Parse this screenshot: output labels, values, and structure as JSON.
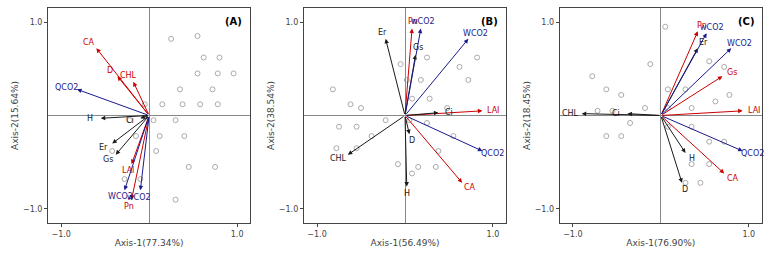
{
  "chart_data": [
    {
      "type": "biplot",
      "x_label": "Axis-1(77.34%)",
      "y_label": "Axis-2(15.64%)",
      "annotations": [
        "(A)"
      ],
      "x": [
        0.55,
        0.25,
        0.62,
        0.8,
        0.55,
        0.78,
        0.96,
        0.35,
        0.72,
        -0.05,
        0.15,
        0.38,
        0.58,
        0.78,
        -0.22,
        0.05,
        0.3,
        -0.15,
        0.12,
        0.4,
        -0.42,
        0.08,
        0.45,
        0.75,
        -0.28,
        -0.1,
        0.3
      ],
      "values": [
        0.85,
        0.82,
        0.62,
        0.62,
        0.45,
        0.45,
        0.45,
        0.28,
        0.28,
        0.12,
        0.12,
        0.12,
        0.12,
        0.12,
        -0.05,
        -0.05,
        -0.05,
        -0.22,
        -0.22,
        -0.22,
        -0.38,
        -0.38,
        -0.55,
        -0.55,
        -0.68,
        -0.68,
        -0.9
      ],
      "color": "#aaaaaa",
      "marker": "circle-open",
      "vectors": [
        {
          "label": "CA",
          "x": -0.6,
          "y": 0.72,
          "color": "#cc0000"
        },
        {
          "label": "D",
          "x": -0.36,
          "y": 0.42,
          "color": "#cc0000"
        },
        {
          "label": "CHL",
          "x": -0.18,
          "y": 0.36,
          "color": "#cc0000"
        },
        {
          "label": "LAI",
          "x": -0.2,
          "y": -0.52,
          "color": "#cc0000"
        },
        {
          "label": "Pn",
          "x": -0.2,
          "y": -0.9,
          "color": "#cc0000"
        },
        {
          "label": "Er",
          "x": -0.42,
          "y": -0.3,
          "color": "#1a1a1a"
        },
        {
          "label": "Gs",
          "x": -0.38,
          "y": -0.42,
          "color": "#1a1a1a"
        },
        {
          "label": "Ci",
          "x": -0.1,
          "y": -0.03,
          "color": "#1a1a1a"
        },
        {
          "label": "H",
          "x": -0.55,
          "y": -0.03,
          "color": "#1a1a1a"
        },
        {
          "label": "QCO2",
          "x": -0.82,
          "y": 0.28,
          "color": "#1a1a8c"
        },
        {
          "label": "WCO2",
          "x": -0.28,
          "y": -0.8,
          "color": "#1a1a8c"
        },
        {
          "label": "wCO2",
          "x": -0.1,
          "y": -0.8,
          "color": "#1a1a8c"
        }
      ],
      "xlim": [
        -1.15,
        1.15
      ],
      "ylim": [
        -1.15,
        1.15
      ],
      "xticks": [
        {
          "value": -1.0,
          "label": "−1.0"
        },
        {
          "value": 1.0,
          "label": "1.0"
        }
      ],
      "yticks": [
        {
          "value": -1.0,
          "label": "−1.0"
        },
        {
          "value": 1.0,
          "label": "1.0"
        }
      ],
      "grid": false
    },
    {
      "type": "biplot",
      "x_label": "Axis-1(56.49%)",
      "y_label": "Axis-2(38.54%)",
      "annotations": [
        "(B)"
      ],
      "x": [
        -0.82,
        -0.62,
        -0.5,
        -0.75,
        -0.55,
        -0.78,
        -0.55,
        -0.38,
        -0.22,
        0.02,
        0.18,
        0.08,
        0.28,
        0.05,
        0.25,
        0.38,
        0.55,
        0.62,
        0.72,
        0.82,
        0.48,
        0.15,
        0.35,
        -0.08,
        0.08,
        -0.05,
        0.25
      ],
      "values": [
        0.28,
        0.12,
        0.08,
        -0.12,
        -0.12,
        -0.35,
        -0.35,
        -0.22,
        -0.05,
        0.38,
        0.38,
        0.18,
        0.18,
        -0.05,
        -0.08,
        -0.38,
        -0.22,
        0.52,
        0.38,
        0.62,
        0.08,
        -0.55,
        -0.55,
        -0.52,
        -0.62,
        0.55,
        0.62
      ],
      "color": "#aaaaaa",
      "marker": "circle-open",
      "vectors": [
        {
          "label": "Pn",
          "x": 0.08,
          "y": 0.93,
          "color": "#cc0000"
        },
        {
          "label": "CA",
          "x": 0.65,
          "y": -0.72,
          "color": "#cc0000"
        },
        {
          "label": "LAI",
          "x": 0.88,
          "y": 0.05,
          "color": "#cc0000"
        },
        {
          "label": "Er",
          "x": -0.22,
          "y": 0.82,
          "color": "#1a1a1a"
        },
        {
          "label": "Gs",
          "x": 0.12,
          "y": 0.65,
          "color": "#1a1a1a"
        },
        {
          "label": "D",
          "x": 0.05,
          "y": -0.2,
          "color": "#1a1a1a"
        },
        {
          "label": "H",
          "x": 0.02,
          "y": -0.76,
          "color": "#1a1a1a"
        },
        {
          "label": "CHL",
          "x": -0.65,
          "y": -0.42,
          "color": "#1a1a1a"
        },
        {
          "label": "Ci",
          "x": 0.38,
          "y": 0.03,
          "color": "#1a1a1a"
        },
        {
          "label": "QCO2",
          "x": 0.88,
          "y": -0.38,
          "color": "#1a1a8c"
        },
        {
          "label": "WCO2",
          "x": 0.72,
          "y": 0.82,
          "color": "#1a1a8c"
        },
        {
          "label": "wCO2",
          "x": 0.18,
          "y": 0.93,
          "color": "#1a1a8c"
        }
      ],
      "xlim": [
        -1.15,
        1.15
      ],
      "ylim": [
        -1.15,
        1.15
      ],
      "xticks": [
        {
          "value": -1.0,
          "label": "−1.0"
        },
        {
          "value": 1.0,
          "label": "1.0"
        }
      ],
      "yticks": [
        {
          "value": -1.0,
          "label": "−1.0"
        },
        {
          "value": 1.0,
          "label": "1.0"
        }
      ],
      "grid": false
    },
    {
      "type": "biplot",
      "x_label": "Axis-1(76.90%)",
      "y_label": "Axis-2(18.45%)",
      "annotations": [
        "(C)"
      ],
      "x": [
        -0.78,
        -0.62,
        -0.45,
        -0.72,
        -0.55,
        -0.62,
        -0.45,
        -0.35,
        -0.18,
        0.05,
        0.08,
        0.28,
        0.08,
        0.35,
        0.08,
        0.35,
        0.55,
        0.72,
        0.62,
        0.78,
        0.55,
        0.72,
        0.35,
        0.55,
        0.28,
        0.45,
        -0.12
      ],
      "values": [
        0.42,
        0.28,
        0.22,
        0.05,
        0.05,
        -0.22,
        -0.22,
        -0.08,
        0.08,
        0.95,
        0.28,
        0.28,
        0.08,
        0.08,
        -0.12,
        -0.12,
        0.58,
        0.52,
        0.15,
        0.22,
        -0.28,
        -0.28,
        -0.52,
        -0.52,
        -0.72,
        -0.72,
        0.55
      ],
      "color": "#aaaaaa",
      "marker": "circle-open",
      "vectors": [
        {
          "label": "Pn",
          "x": 0.42,
          "y": 0.9,
          "color": "#cc0000"
        },
        {
          "label": "CA",
          "x": 0.72,
          "y": -0.62,
          "color": "#cc0000"
        },
        {
          "label": "LAI",
          "x": 0.93,
          "y": 0.05,
          "color": "#cc0000"
        },
        {
          "label": "Gs",
          "x": 0.7,
          "y": 0.42,
          "color": "#cc0000"
        },
        {
          "label": "Er",
          "x": 0.42,
          "y": 0.72,
          "color": "#1a1a1a"
        },
        {
          "label": "H",
          "x": 0.28,
          "y": -0.4,
          "color": "#1a1a1a"
        },
        {
          "label": "D",
          "x": 0.24,
          "y": -0.72,
          "color": "#1a1a1a"
        },
        {
          "label": "CHL",
          "x": -0.9,
          "y": 0.02,
          "color": "#1a1a1a"
        },
        {
          "label": "Ci",
          "x": -0.38,
          "y": 0.02,
          "color": "#1a1a1a"
        },
        {
          "label": "QCO2",
          "x": 0.93,
          "y": -0.38,
          "color": "#1a1a8c"
        },
        {
          "label": "WCO2",
          "x": 0.8,
          "y": 0.72,
          "color": "#1a1a8c"
        },
        {
          "label": "wCO2",
          "x": 0.52,
          "y": 0.88,
          "color": "#1a1a8c"
        }
      ],
      "xlim": [
        -1.15,
        1.15
      ],
      "ylim": [
        -1.15,
        1.15
      ],
      "xticks": [
        {
          "value": -1.0,
          "label": "−1.0"
        },
        {
          "value": 1.0,
          "label": "1.0"
        }
      ],
      "yticks": [
        {
          "value": -1.0,
          "label": "−1.0"
        },
        {
          "value": 1.0,
          "label": "1.0"
        }
      ],
      "grid": false
    }
  ]
}
